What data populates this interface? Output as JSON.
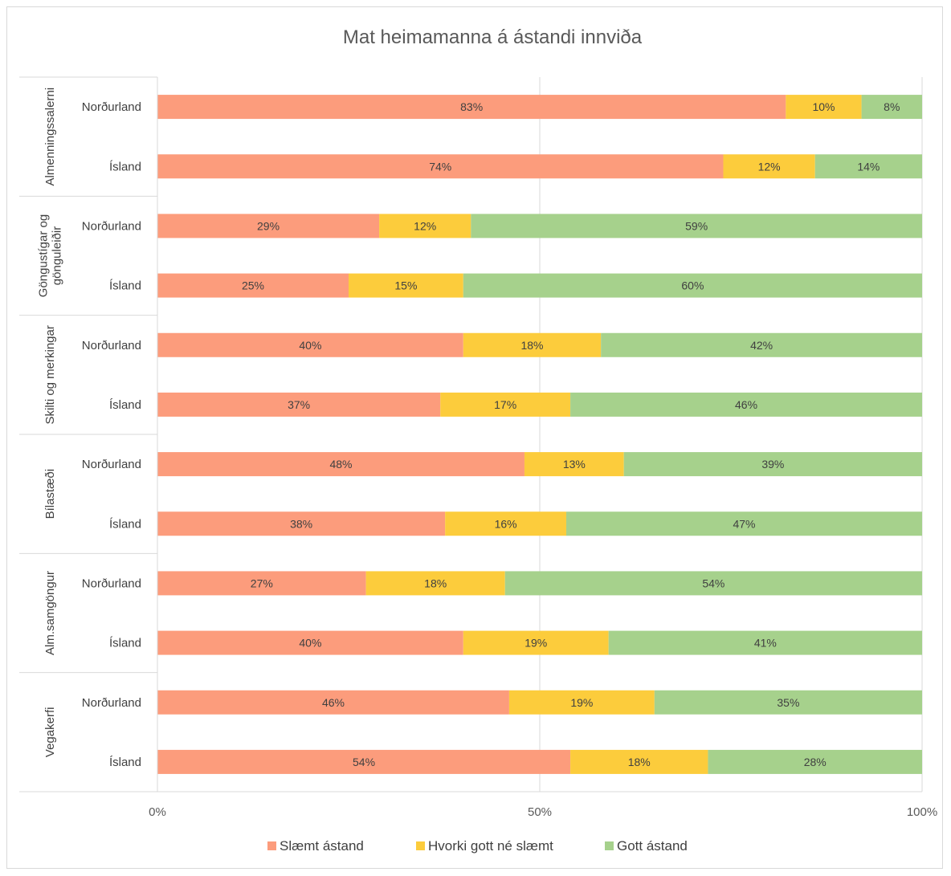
{
  "chart_data": {
    "type": "bar",
    "orientation": "horizontal",
    "stacked": "percent",
    "title": "Mat heimamanna á ástandi innviða",
    "x_ticks": [
      "0%",
      "50%",
      "100%"
    ],
    "xlim": [
      0,
      100
    ],
    "grid": true,
    "legend_position": "bottom",
    "groups": [
      {
        "name": "Almenningssalerni",
        "label_lines": [
          "Almenningssalerni"
        ],
        "rows": [
          {
            "label": "Norðurland",
            "values": [
              83,
              10,
              8
            ]
          },
          {
            "label": "Ísland",
            "values": [
              74,
              12,
              14
            ]
          }
        ]
      },
      {
        "name": "Göngustígar og gönguleiðir",
        "label_lines": [
          "Göngustígar og",
          "gönguleiðir"
        ],
        "rows": [
          {
            "label": "Norðurland",
            "values": [
              29,
              12,
              59
            ]
          },
          {
            "label": "Ísland",
            "values": [
              25,
              15,
              60
            ]
          }
        ]
      },
      {
        "name": "Skilti og merkingar",
        "label_lines": [
          "Skilti og merkingar"
        ],
        "rows": [
          {
            "label": "Norðurland",
            "values": [
              40,
              18,
              42
            ]
          },
          {
            "label": "Ísland",
            "values": [
              37,
              17,
              46
            ]
          }
        ]
      },
      {
        "name": "Bílastæði",
        "label_lines": [
          "Bílastæði"
        ],
        "rows": [
          {
            "label": "Norðurland",
            "values": [
              48,
              13,
              39
            ]
          },
          {
            "label": "Ísland",
            "values": [
              38,
              16,
              47
            ]
          }
        ]
      },
      {
        "name": "Alm.samgöngur",
        "label_lines": [
          "Alm.samgöngur"
        ],
        "rows": [
          {
            "label": "Norðurland",
            "values": [
              27,
              18,
              54
            ]
          },
          {
            "label": "Ísland",
            "values": [
              40,
              19,
              41
            ]
          }
        ]
      },
      {
        "name": "Vegakerfi",
        "label_lines": [
          "Vegakerfi"
        ],
        "rows": [
          {
            "label": "Norðurland",
            "values": [
              46,
              19,
              35
            ]
          },
          {
            "label": "Ísland",
            "values": [
              54,
              18,
              28
            ]
          }
        ]
      }
    ],
    "series": [
      {
        "name": "Slæmt ástand",
        "color": "#fc9c7c"
      },
      {
        "name": "Hvorki gott né slæmt",
        "color": "#fccc3c"
      },
      {
        "name": "Gott ástand",
        "color": "#a6d18c"
      }
    ]
  }
}
